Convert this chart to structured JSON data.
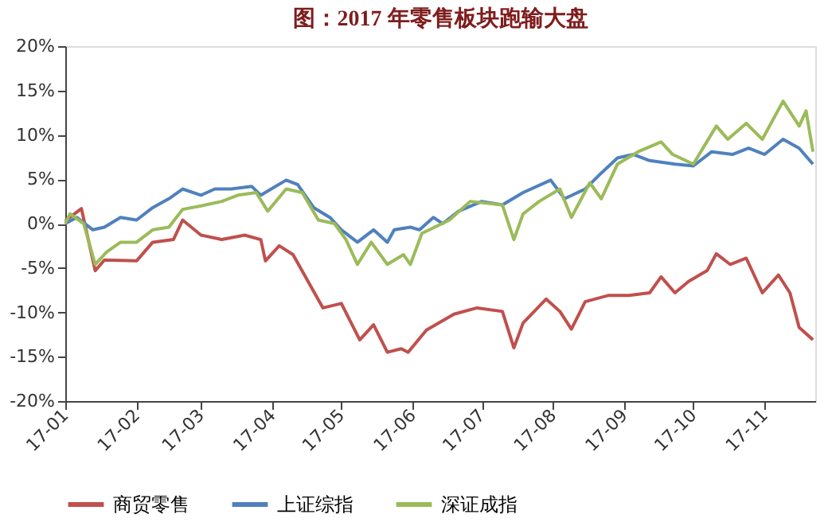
{
  "chart_data": {
    "type": "line",
    "title": "图：2017 年零售板块跑输大盘",
    "xlim": [
      "2017-01-01",
      "2017-11-23"
    ],
    "xticks": [
      {
        "value": "2017-01-01",
        "label": "17-01"
      },
      {
        "value": "2017-02-01",
        "label": "17-02"
      },
      {
        "value": "2017-03-01",
        "label": "17-03"
      },
      {
        "value": "2017-04-01",
        "label": "17-04"
      },
      {
        "value": "2017-05-01",
        "label": "17-05"
      },
      {
        "value": "2017-06-01",
        "label": "17-06"
      },
      {
        "value": "2017-07-01",
        "label": "17-07"
      },
      {
        "value": "2017-08-01",
        "label": "17-08"
      },
      {
        "value": "2017-09-01",
        "label": "17-09"
      },
      {
        "value": "2017-10-01",
        "label": "17-10"
      },
      {
        "value": "2017-11-01",
        "label": "17-11"
      }
    ],
    "ylim": [
      -20,
      20
    ],
    "yticks": [
      {
        "value": -20,
        "label": "-20%"
      },
      {
        "value": -15,
        "label": "-15%"
      },
      {
        "value": -10,
        "label": "-10%"
      },
      {
        "value": -5,
        "label": "-5%"
      },
      {
        "value": 0,
        "label": "0%"
      },
      {
        "value": 5,
        "label": "5%"
      },
      {
        "value": 10,
        "label": "10%"
      },
      {
        "value": 15,
        "label": "15%"
      },
      {
        "value": 20,
        "label": "20%"
      }
    ],
    "grid": false,
    "legend": "bottom",
    "marker": "none",
    "line_style": "solid",
    "series": [
      {
        "name": "商贸零售",
        "color": "#c0504d",
        "x": [
          "2017-01-01",
          "2017-01-08",
          "2017-01-14",
          "2017-01-18",
          "2017-02-01",
          "2017-02-08",
          "2017-02-17",
          "2017-02-21",
          "2017-03-01",
          "2017-03-10",
          "2017-03-20",
          "2017-03-27",
          "2017-03-29",
          "2017-04-04",
          "2017-04-10",
          "2017-04-23",
          "2017-05-01",
          "2017-05-09",
          "2017-05-15",
          "2017-05-21",
          "2017-05-27",
          "2017-05-30",
          "2017-06-07",
          "2017-06-19",
          "2017-06-29",
          "2017-07-10",
          "2017-07-15",
          "2017-07-19",
          "2017-07-29",
          "2017-08-04",
          "2017-08-09",
          "2017-08-15",
          "2017-08-25",
          "2017-09-03",
          "2017-09-12",
          "2017-09-17",
          "2017-09-23",
          "2017-09-29",
          "2017-10-07",
          "2017-10-11",
          "2017-10-17",
          "2017-10-24",
          "2017-10-31",
          "2017-11-07",
          "2017-11-12",
          "2017-11-16",
          "2017-11-22"
        ],
        "values": [
          0.3,
          1.7,
          -5.3,
          -4.1,
          -4.2,
          -2.1,
          -1.8,
          0.4,
          -1.3,
          -1.8,
          -1.3,
          -1.8,
          -4.2,
          -2.5,
          -3.5,
          -9.5,
          -9.0,
          -13.1,
          -11.4,
          -14.5,
          -14.1,
          -14.5,
          -12.0,
          -10.2,
          -9.5,
          -9.9,
          -14.0,
          -11.2,
          -8.5,
          -9.9,
          -11.9,
          -8.8,
          -8.1,
          -8.1,
          -7.8,
          -6.0,
          -7.8,
          -6.5,
          -5.3,
          -3.4,
          -4.6,
          -3.9,
          -7.8,
          -5.8,
          -7.8,
          -11.7,
          -13.1
        ]
      },
      {
        "name": "上证综指",
        "color": "#4f81bd",
        "x": [
          "2017-01-01",
          "2017-01-06",
          "2017-01-13",
          "2017-01-18",
          "2017-01-25",
          "2017-02-01",
          "2017-02-08",
          "2017-02-15",
          "2017-02-21",
          "2017-03-01",
          "2017-03-07",
          "2017-03-14",
          "2017-03-23",
          "2017-03-27",
          "2017-04-07",
          "2017-04-12",
          "2017-04-19",
          "2017-04-26",
          "2017-05-01",
          "2017-05-08",
          "2017-05-15",
          "2017-05-21",
          "2017-05-24",
          "2017-05-31",
          "2017-06-04",
          "2017-06-10",
          "2017-06-14",
          "2017-06-21",
          "2017-07-01",
          "2017-07-10",
          "2017-07-19",
          "2017-07-31",
          "2017-08-06",
          "2017-08-15",
          "2017-08-22",
          "2017-08-29",
          "2017-09-05",
          "2017-09-12",
          "2017-09-23",
          "2017-10-01",
          "2017-10-09",
          "2017-10-18",
          "2017-10-25",
          "2017-11-01",
          "2017-11-09",
          "2017-11-16",
          "2017-11-22"
        ],
        "values": [
          0,
          0.7,
          -0.7,
          -0.4,
          0.7,
          0.4,
          1.8,
          2.8,
          3.9,
          3.2,
          3.9,
          3.9,
          4.2,
          3.2,
          4.9,
          4.4,
          1.8,
          0.7,
          -0.7,
          -2.1,
          -0.7,
          -2.1,
          -0.7,
          -0.4,
          -0.7,
          0.7,
          0,
          1.4,
          2.5,
          2.1,
          3.5,
          4.9,
          2.8,
          3.9,
          5.7,
          7.4,
          7.8,
          7.1,
          6.7,
          6.5,
          8.1,
          7.8,
          8.5,
          7.8,
          9.5,
          8.5,
          6.7
        ]
      },
      {
        "name": "深证成指",
        "color": "#9bbb59",
        "x": [
          "2017-01-01",
          "2017-01-03",
          "2017-01-09",
          "2017-01-14",
          "2017-01-19",
          "2017-01-25",
          "2017-02-01",
          "2017-02-08",
          "2017-02-15",
          "2017-02-21",
          "2017-03-01",
          "2017-03-10",
          "2017-03-17",
          "2017-03-25",
          "2017-03-30",
          "2017-04-07",
          "2017-04-14",
          "2017-04-21",
          "2017-04-28",
          "2017-05-03",
          "2017-05-08",
          "2017-05-14",
          "2017-05-21",
          "2017-05-28",
          "2017-05-31",
          "2017-06-05",
          "2017-06-17",
          "2017-06-26",
          "2017-07-10",
          "2017-07-15",
          "2017-07-19",
          "2017-07-26",
          "2017-08-04",
          "2017-08-09",
          "2017-08-17",
          "2017-08-22",
          "2017-08-29",
          "2017-09-07",
          "2017-09-17",
          "2017-09-22",
          "2017-10-01",
          "2017-10-11",
          "2017-10-16",
          "2017-10-24",
          "2017-10-31",
          "2017-11-09",
          "2017-11-16",
          "2017-11-19",
          "2017-11-22"
        ],
        "values": [
          0,
          1.1,
          0,
          -4.6,
          -3.2,
          -2.1,
          -2.1,
          -0.7,
          -0.4,
          1.6,
          2.0,
          2.5,
          3.2,
          3.5,
          1.4,
          3.9,
          3.5,
          0.4,
          0,
          -1.8,
          -4.6,
          -2.1,
          -4.6,
          -3.5,
          -4.6,
          -1.1,
          0.4,
          2.5,
          2.1,
          -1.8,
          1.1,
          2.5,
          3.9,
          0.7,
          4.6,
          2.8,
          6.7,
          8.1,
          9.2,
          7.8,
          6.7,
          11.0,
          9.5,
          11.3,
          9.5,
          13.8,
          11.0,
          12.7,
          8.1
        ]
      }
    ]
  }
}
